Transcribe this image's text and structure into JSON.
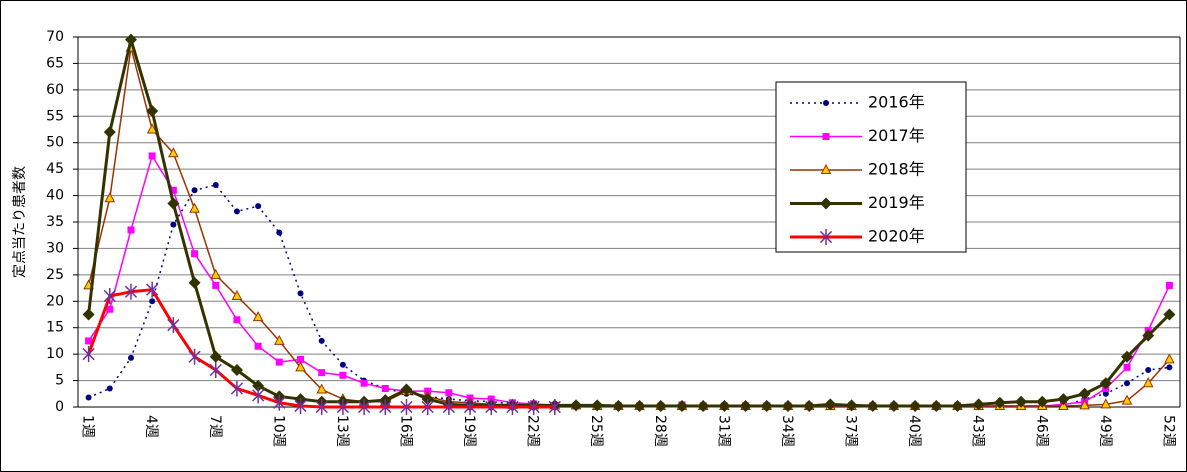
{
  "chart_data": {
    "type": "line",
    "y_label": "定点当たり患者数",
    "categories": [
      "1週",
      null,
      null,
      "4週",
      null,
      null,
      "7週",
      null,
      null,
      "10週",
      null,
      null,
      "13週",
      null,
      null,
      "16週",
      null,
      null,
      "19週",
      null,
      null,
      "22週",
      null,
      null,
      "25週",
      null,
      null,
      "28週",
      null,
      null,
      "31週",
      null,
      null,
      "34週",
      null,
      null,
      "37週",
      null,
      null,
      "40週",
      null,
      null,
      "43週",
      null,
      null,
      "46週",
      null,
      null,
      "49週",
      null,
      null,
      "52週"
    ],
    "ylim": [
      0,
      70
    ],
    "yticks": [
      0,
      5,
      10,
      15,
      20,
      25,
      30,
      35,
      40,
      45,
      50,
      55,
      60,
      65,
      70
    ],
    "grid": true,
    "legend": "upper right",
    "series": [
      {
        "name": "2016年",
        "color": "#000080",
        "marker": "circle",
        "dashed": true,
        "width": 1.5,
        "values": [
          1.8,
          3.5,
          9.3,
          20,
          34.5,
          41,
          42,
          37,
          38,
          33,
          21.5,
          12.5,
          8,
          5,
          3.5,
          2.5,
          2,
          1.5,
          1.2,
          1,
          0.6,
          0.5,
          0.3,
          0.2,
          0.2,
          0.2,
          0.2,
          0.2,
          0.2,
          0.2,
          0.2,
          0.2,
          0.2,
          0.2,
          0.2,
          0.2,
          0.2,
          0.2,
          0.2,
          0.2,
          0.2,
          0.2,
          0.2,
          0.2,
          0.2,
          0.2,
          0.2,
          1.5,
          2.5,
          4.5,
          7,
          7.5
        ]
      },
      {
        "name": "2017年",
        "color": "#ff00ff",
        "marker": "square",
        "dashed": false,
        "width": 1.5,
        "values": [
          12.5,
          18.5,
          33.5,
          47.5,
          41,
          29,
          23,
          16.5,
          11.5,
          8.5,
          9,
          6.5,
          6,
          4.5,
          3.5,
          3,
          3,
          2.7,
          1.7,
          1.5,
          0.8,
          0.6,
          0.3,
          0.2,
          0.2,
          0.2,
          0.2,
          0.2,
          0.4,
          0.2,
          0.2,
          0.2,
          0.2,
          0.2,
          0.2,
          0.2,
          0.2,
          0.2,
          0.2,
          0.2,
          0.2,
          0.2,
          0.2,
          0.2,
          0.2,
          0.2,
          0.5,
          1,
          3.5,
          7.5,
          14.5,
          23
        ]
      },
      {
        "name": "2018年",
        "color": "#993300",
        "marker": "triangle",
        "dashed": false,
        "width": 1.5,
        "values": [
          23,
          39.5,
          68,
          52.5,
          48,
          37.5,
          25,
          21,
          17,
          12.5,
          7.5,
          3.3,
          1.5,
          1,
          1,
          3,
          2,
          1,
          0.8,
          0.5,
          0.4,
          0.3,
          0.3,
          0.3,
          0.2,
          0.2,
          0.2,
          0.2,
          0.2,
          0.2,
          0.2,
          0.2,
          0.2,
          0.2,
          0.2,
          0.2,
          0.2,
          0.2,
          0.2,
          0.2,
          0.2,
          0.2,
          0.2,
          0.2,
          0.2,
          0.2,
          0.2,
          0.3,
          0.5,
          1.2,
          4.5,
          9
        ]
      },
      {
        "name": "2019年",
        "color": "#333300",
        "marker": "diamond",
        "dashed": false,
        "width": 3,
        "values": [
          17.5,
          52,
          69.5,
          56,
          38.5,
          23.5,
          9.5,
          7,
          4,
          2,
          1.5,
          1,
          1,
          1,
          1.3,
          3.3,
          1.5,
          0.5,
          0.3,
          0.3,
          0.3,
          0.3,
          0.3,
          0.3,
          0.3,
          0.2,
          0.2,
          0.2,
          0.2,
          0.2,
          0.2,
          0.2,
          0.2,
          0.2,
          0.2,
          0.5,
          0.3,
          0.2,
          0.2,
          0.2,
          0.2,
          0.2,
          0.5,
          0.8,
          1,
          1,
          1.5,
          2.5,
          4.5,
          9.5,
          13.5,
          17.5
        ]
      },
      {
        "name": "2020年",
        "color": "#ff0000",
        "marker": "asterisk",
        "marker_color": "#7030a0",
        "dashed": false,
        "width": 3,
        "values": [
          10,
          21,
          21.8,
          22.2,
          15.5,
          9.5,
          7,
          3.5,
          2.2,
          0.8,
          0.2,
          0,
          0,
          0,
          0,
          0,
          0,
          0,
          0,
          0,
          0,
          0,
          0,
          null,
          null,
          null,
          null,
          null,
          null,
          null,
          null,
          null,
          null,
          null,
          null,
          null,
          null,
          null,
          null,
          null,
          null,
          null,
          null,
          null,
          null,
          null,
          null,
          null,
          null,
          null,
          null,
          null
        ]
      }
    ]
  }
}
